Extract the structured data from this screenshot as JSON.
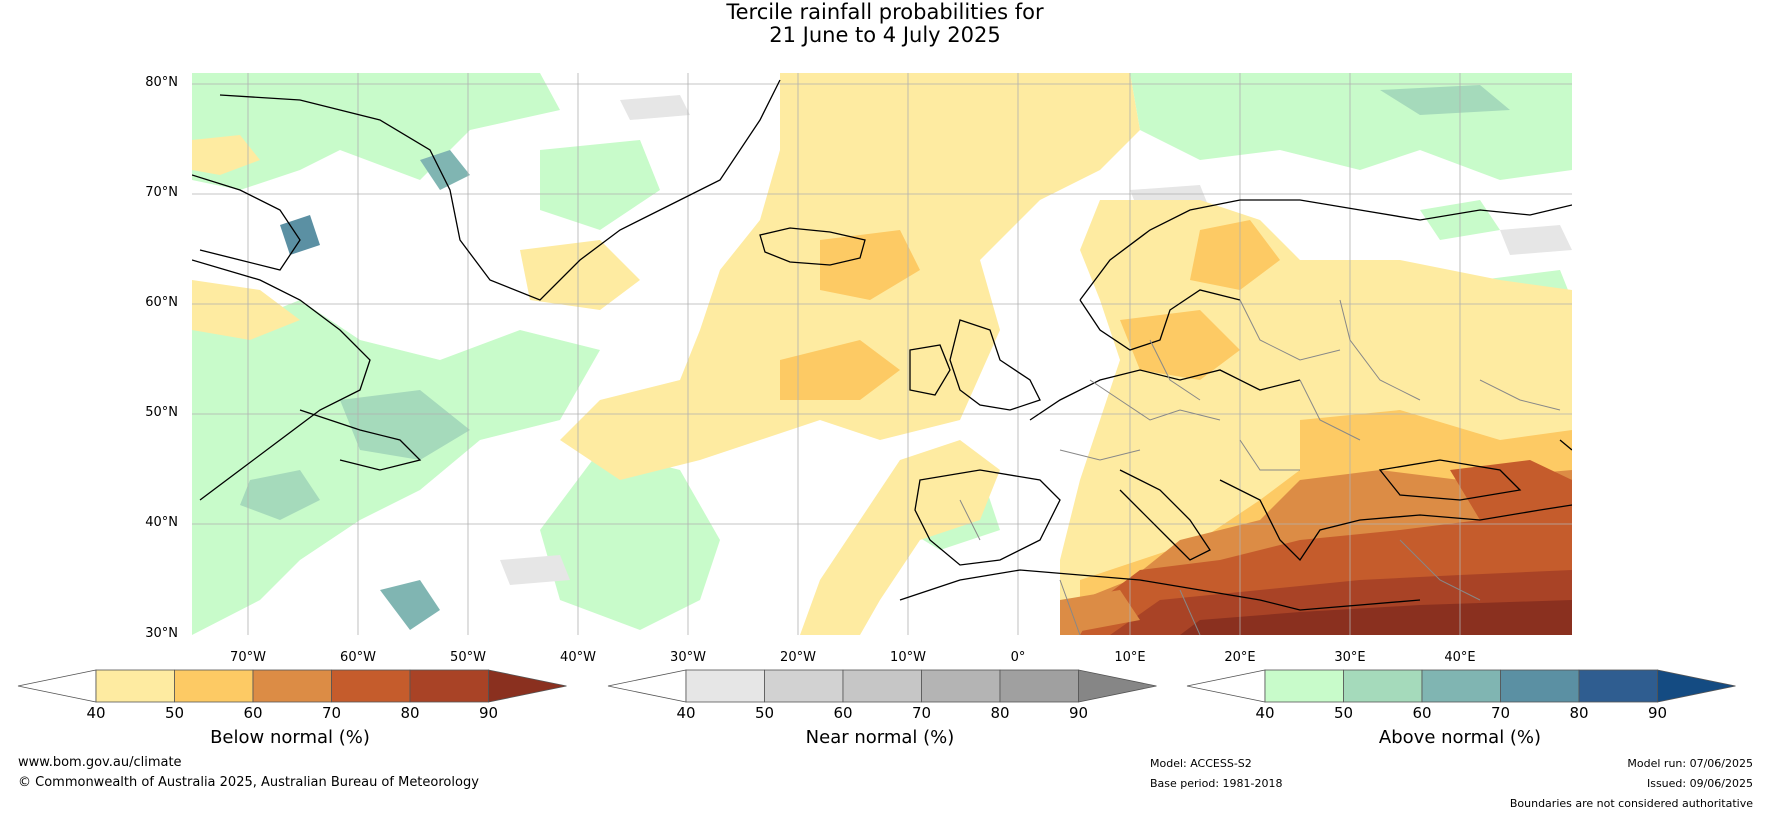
{
  "title": {
    "line1": "Tercile rainfall probabilities for",
    "line2": "21 June to 4 July 2025"
  },
  "map": {
    "lat_labels": [
      "80°N",
      "70°N",
      "60°N",
      "50°N",
      "40°N",
      "30°N"
    ],
    "lon_labels": [
      "70°W",
      "60°W",
      "50°W",
      "40°W",
      "30°W",
      "20°W",
      "10°W",
      "0°",
      "10°E",
      "20°E",
      "30°E",
      "40°E"
    ],
    "colors": {
      "below": [
        "#feeba1",
        "#fdca64",
        "#dc8c45",
        "#c55c2c",
        "#a94326",
        "#8a301f"
      ],
      "near": [
        "#e6e6e6",
        "#d2d2d2",
        "#c6c6c6",
        "#b4b4b4",
        "#a0a0a0",
        "#868686"
      ],
      "above": [
        "#c8fbca",
        "#a5dabb",
        "#80b5b2",
        "#5b90a3",
        "#2f5d90",
        "#144b82"
      ],
      "coast": "#000000",
      "border": "#888888",
      "grid": "#b0b0b0"
    }
  },
  "colorbars": [
    {
      "label": "Below normal (%)",
      "ticks": [
        "40",
        "50",
        "60",
        "70",
        "80",
        "90"
      ]
    },
    {
      "label": "Near normal (%)",
      "ticks": [
        "40",
        "50",
        "60",
        "70",
        "80",
        "90"
      ]
    },
    {
      "label": "Above normal (%)",
      "ticks": [
        "40",
        "50",
        "60",
        "70",
        "80",
        "90"
      ]
    }
  ],
  "footer": {
    "website": "www.bom.gov.au/climate",
    "copyright": "© Commonwealth of Australia 2025, Australian Bureau of Meteorology",
    "model": "Model: ACCESS-S2",
    "base_period": "Base period: 1981-2018",
    "model_run": "Model run: 07/06/2025",
    "issued": "Issued: 09/06/2025",
    "disclaimer": "Boundaries are not considered authoritative"
  }
}
